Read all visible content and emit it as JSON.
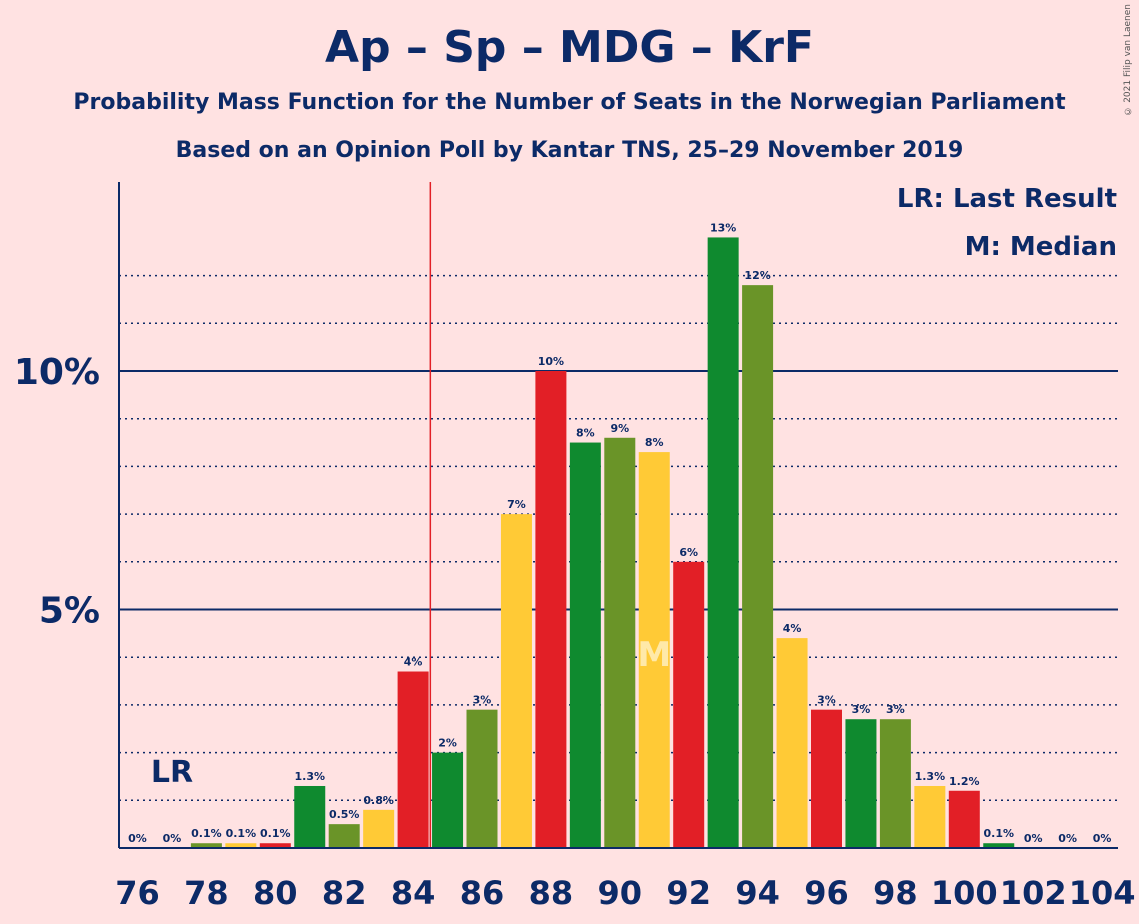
{
  "title": "Ap – Sp – MDG – KrF",
  "subtitle1": "Probability Mass Function for the Number of Seats in the Norwegian Parliament",
  "subtitle2": "Based on an Opinion Poll by Kantar TNS, 25–29 November 2019",
  "copyright": "© 2021 Filip van Laenen",
  "legend": {
    "lr": "LR: Last Result",
    "median": "M: Median"
  },
  "markers": {
    "lr_label": "LR",
    "median_label": "M"
  },
  "colors": {
    "background": "#FFE2E2",
    "text": "#0C2A67",
    "red": "#E21F26",
    "darkgreen": "#0F8A2F",
    "olive": "#6A9428",
    "yellow": "#FFCA36",
    "lr_line": "#E21F26"
  },
  "chart_data": {
    "type": "bar",
    "x": [
      76,
      77,
      78,
      79,
      80,
      81,
      82,
      83,
      84,
      85,
      86,
      87,
      88,
      89,
      90,
      91,
      92,
      93,
      94,
      95,
      96,
      97,
      98,
      99,
      100,
      101,
      102,
      103,
      104
    ],
    "values": [
      0,
      0,
      0.1,
      0.1,
      0.1,
      1.3,
      0.5,
      0.8,
      3.7,
      2.0,
      2.9,
      7.0,
      10.0,
      8.5,
      8.6,
      8.3,
      6.0,
      12.8,
      11.8,
      4.4,
      2.9,
      2.7,
      2.7,
      1.3,
      1.2,
      0.1,
      0,
      0,
      0
    ],
    "labels": [
      "0%",
      "0%",
      "0.1%",
      "0.1%",
      "0.1%",
      "1.3%",
      "0.5%",
      "0.8%",
      "4%",
      "2%",
      "3%",
      "7%",
      "10%",
      "8%",
      "9%",
      "8%",
      "6%",
      "13%",
      "12%",
      "4%",
      "3%",
      "3%",
      "3%",
      "1.3%",
      "1.2%",
      "0.1%",
      "0%",
      "0%",
      "0%"
    ],
    "bar_colors": [
      "red",
      "darkgreen",
      "olive",
      "yellow",
      "red",
      "darkgreen",
      "olive",
      "yellow",
      "red",
      "darkgreen",
      "olive",
      "yellow",
      "red",
      "darkgreen",
      "olive",
      "yellow",
      "red",
      "darkgreen",
      "olive",
      "yellow",
      "red",
      "darkgreen",
      "olive",
      "yellow",
      "red",
      "darkgreen",
      "olive",
      "yellow",
      "red"
    ],
    "x_ticks": [
      "76",
      "78",
      "80",
      "82",
      "84",
      "86",
      "88",
      "90",
      "92",
      "94",
      "96",
      "98",
      "100",
      "102",
      "104"
    ],
    "y_ticks": [
      "5%",
      "10%"
    ],
    "ylim": [
      0,
      14
    ],
    "last_result": 77,
    "lr_line_after": 84,
    "median": 91
  }
}
